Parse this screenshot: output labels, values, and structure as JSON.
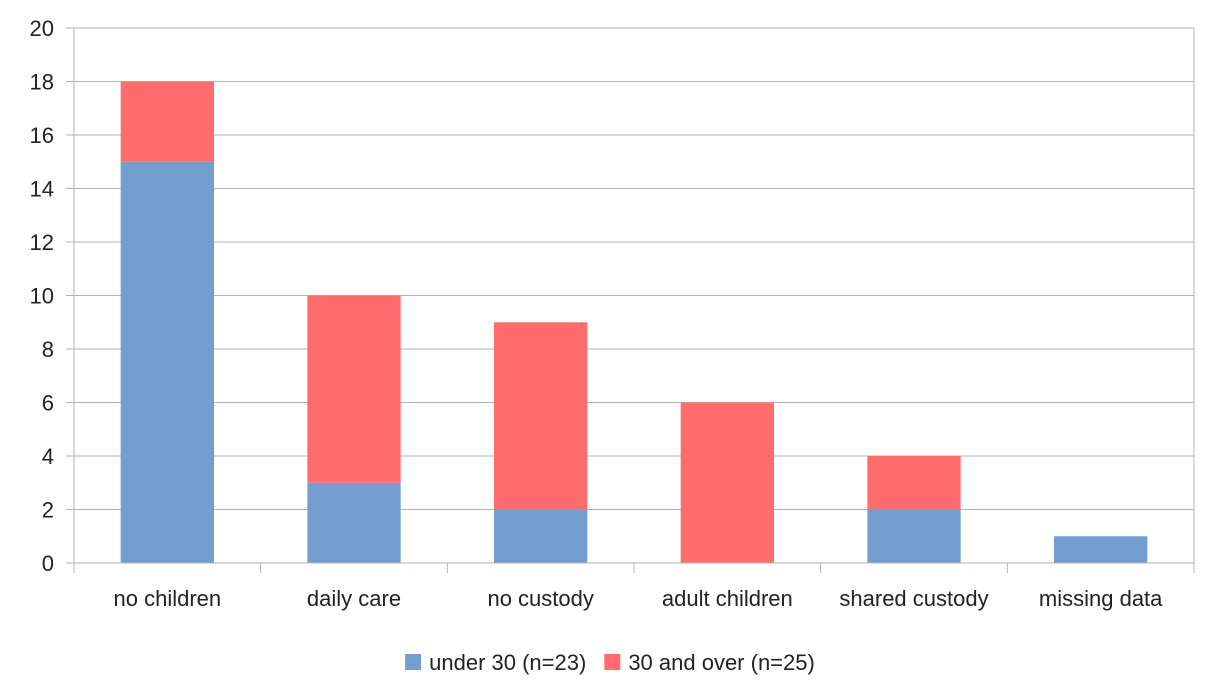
{
  "chart_data": {
    "type": "bar",
    "stacked": true,
    "title": "",
    "xlabel": "",
    "ylabel": "",
    "categories": [
      "no children",
      "daily care",
      "no custody",
      "adult children",
      "shared custody",
      "missing data"
    ],
    "series": [
      {
        "name": "under 30 (n=23)",
        "color": "#729fcf",
        "values": [
          15,
          3,
          2,
          0,
          2,
          1
        ]
      },
      {
        "name": "30 and over (n=25)",
        "color": "#ff6d6d",
        "values": [
          3,
          7,
          7,
          6,
          2,
          0
        ]
      }
    ],
    "ylim": [
      0,
      20
    ],
    "yticks": [
      0,
      2,
      4,
      6,
      8,
      10,
      12,
      14,
      16,
      18,
      20
    ],
    "grid": true,
    "legend_position": "bottom"
  }
}
